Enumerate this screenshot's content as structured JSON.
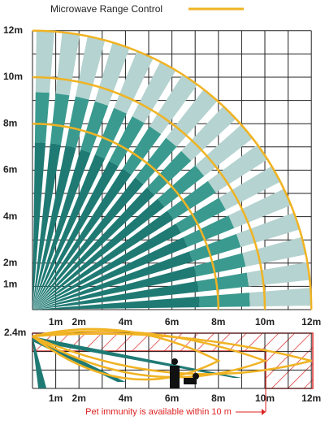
{
  "legend": {
    "label": "Microwave Range Control"
  },
  "top_view": {
    "y_labels": [
      "12m",
      "10m",
      "8m",
      "6m",
      "4m",
      "2m",
      "1m"
    ],
    "x_labels": [
      "1m",
      "2m",
      "4m",
      "6m",
      "8m",
      "10m",
      "12m"
    ]
  },
  "side_view": {
    "height_label": "2.4m",
    "x_labels": [
      "1m",
      "2m",
      "4m",
      "6m",
      "8m",
      "10m",
      "12m"
    ],
    "note": "Pet immunity is available within 10 m"
  }
}
